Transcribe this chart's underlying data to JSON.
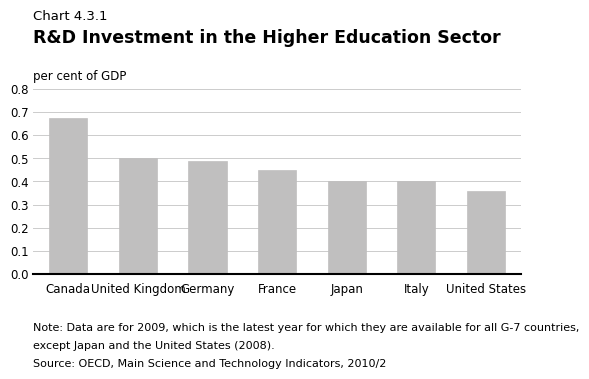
{
  "chart_label": "Chart 4.3.1",
  "title": "R&D Investment in the Higher Education Sector",
  "ylabel": "per cent of GDP",
  "categories": [
    "Canada",
    "United Kingdom",
    "Germany",
    "France",
    "Japan",
    "Italy",
    "United States"
  ],
  "values": [
    0.675,
    0.5,
    0.49,
    0.45,
    0.4,
    0.4,
    0.36
  ],
  "bar_color": "#c0bfbf",
  "bar_edge_color": "#c0bfbf",
  "ylim": [
    0,
    0.8
  ],
  "yticks": [
    0.0,
    0.1,
    0.2,
    0.3,
    0.4,
    0.5,
    0.6,
    0.7,
    0.8
  ],
  "note_line1": "Note: Data are for 2009, which is the latest year for which they are available for all G-7 countries,",
  "note_line2": "except Japan and the United States (2008).",
  "source": "Source: OECD, Main Science and Technology Indicators, 2010/2",
  "background_color": "#ffffff",
  "grid_color": "#cccccc",
  "chart_label_fontsize": 9.5,
  "title_fontsize": 12.5,
  "ylabel_fontsize": 8.5,
  "tick_fontsize": 8.5,
  "note_fontsize": 8.0
}
